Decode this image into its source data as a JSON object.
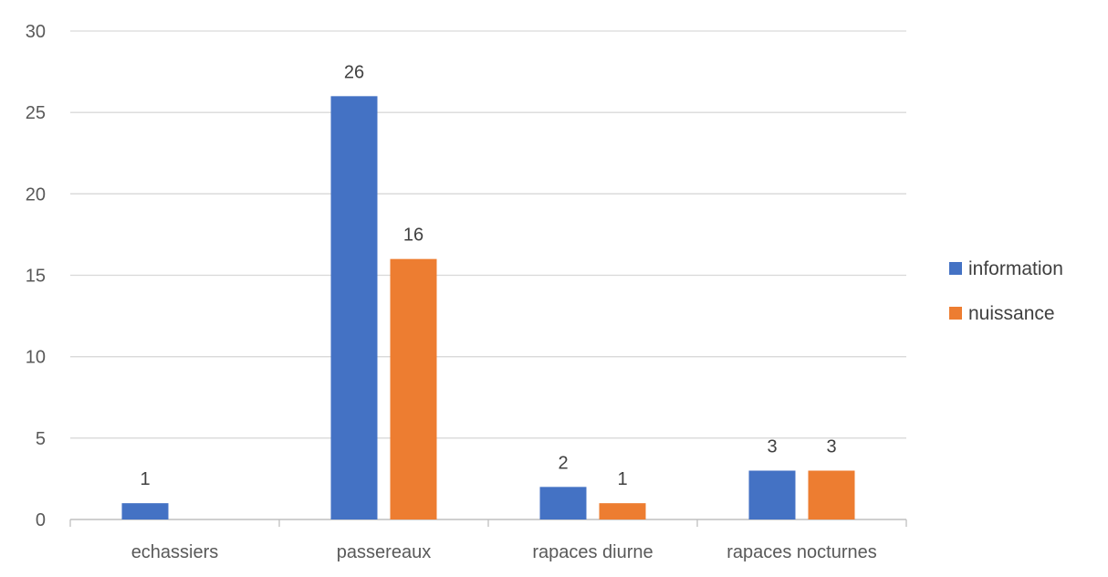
{
  "chart_data": {
    "type": "bar",
    "title": "",
    "xlabel": "",
    "ylabel": "",
    "categories": [
      "echassiers",
      "passereaux",
      "rapaces diurne",
      "rapaces nocturnes"
    ],
    "series": [
      {
        "name": "information",
        "color": "#4472C4",
        "values": [
          1,
          26,
          2,
          3
        ]
      },
      {
        "name": "nuissance",
        "color": "#ED7D31",
        "values": [
          null,
          16,
          1,
          3
        ]
      }
    ],
    "ylim": [
      0,
      30
    ],
    "yticks": [
      0,
      5,
      10,
      15,
      20,
      25,
      30
    ],
    "grid": true,
    "data_labels": true,
    "legend_position": "right"
  }
}
